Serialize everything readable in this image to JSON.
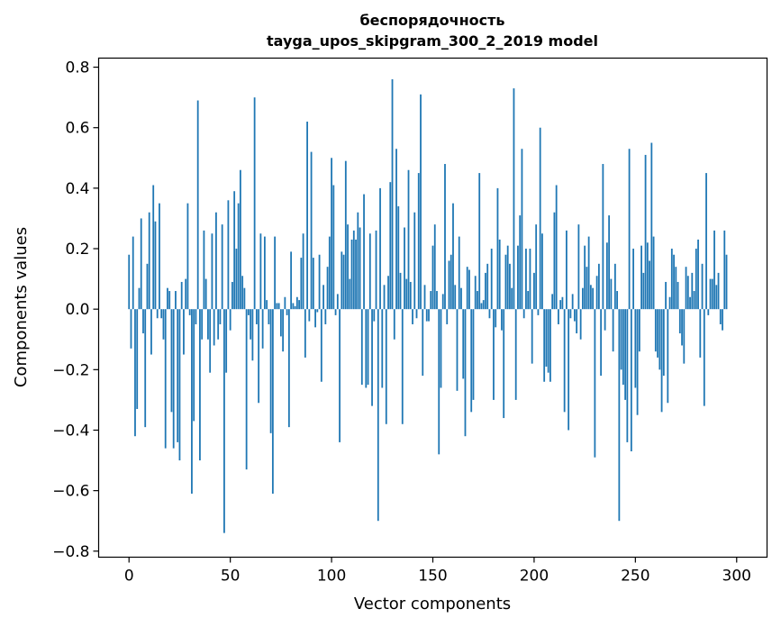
{
  "chart_data": {
    "type": "bar",
    "title": "беспорядочность",
    "subtitle": "tayga_upos_skipgram_300_2_2019 model",
    "xlabel": "Vector components",
    "ylabel": "Components values",
    "xlim": [
      -15,
      315
    ],
    "ylim": [
      -0.82,
      0.83
    ],
    "xticks": [
      0,
      50,
      100,
      150,
      200,
      250,
      300
    ],
    "yticks": [
      -0.8,
      -0.6,
      -0.4,
      -0.2,
      0.0,
      0.2,
      0.4,
      0.6,
      0.8
    ],
    "ytick_labels": [
      "−0.8",
      "−0.6",
      "−0.4",
      "−0.2",
      "0.0",
      "0.2",
      "0.4",
      "0.6",
      "0.8"
    ],
    "bar_color": "#1f77b4",
    "grid": false,
    "values": [
      0.18,
      -0.13,
      0.24,
      -0.42,
      -0.33,
      0.07,
      0.3,
      -0.08,
      -0.39,
      0.15,
      0.32,
      -0.15,
      0.41,
      0.29,
      -0.03,
      0.35,
      -0.03,
      -0.1,
      -0.46,
      0.07,
      0.06,
      -0.34,
      -0.46,
      0.06,
      -0.44,
      -0.5,
      0.09,
      -0.15,
      0.1,
      0.35,
      -0.02,
      -0.61,
      -0.37,
      -0.05,
      0.69,
      -0.5,
      -0.1,
      0.26,
      0.1,
      -0.1,
      -0.21,
      0.25,
      -0.12,
      0.32,
      -0.1,
      -0.05,
      0.28,
      -0.74,
      -0.21,
      0.36,
      -0.07,
      0.09,
      0.39,
      0.2,
      0.35,
      0.46,
      0.11,
      0.07,
      -0.53,
      -0.02,
      -0.1,
      -0.17,
      0.7,
      -0.05,
      -0.31,
      0.25,
      -0.13,
      0.24,
      0.03,
      -0.05,
      -0.41,
      -0.61,
      0.24,
      0.02,
      0.02,
      -0.09,
      -0.14,
      0.04,
      -0.02,
      -0.39,
      0.19,
      0.02,
      0.01,
      0.04,
      0.03,
      0.17,
      0.25,
      -0.16,
      0.62,
      -0.04,
      0.52,
      0.17,
      -0.06,
      -0.01,
      0.18,
      -0.24,
      0.08,
      -0.05,
      0.14,
      0.24,
      0.5,
      0.41,
      -0.02,
      0.05,
      -0.44,
      0.19,
      0.18,
      0.49,
      0.28,
      0.1,
      0.23,
      0.26,
      0.23,
      0.32,
      0.27,
      -0.25,
      0.38,
      -0.26,
      -0.25,
      0.25,
      -0.32,
      -0.04,
      0.26,
      -0.7,
      0.4,
      -0.26,
      0.08,
      -0.38,
      0.11,
      0.42,
      0.76,
      -0.1,
      0.53,
      0.34,
      0.12,
      -0.38,
      0.27,
      0.1,
      0.46,
      0.09,
      -0.05,
      0.32,
      -0.03,
      0.45,
      0.71,
      -0.22,
      0.08,
      -0.04,
      -0.04,
      0.06,
      0.21,
      0.28,
      0.06,
      -0.48,
      -0.26,
      0.05,
      0.48,
      -0.05,
      0.16,
      0.18,
      0.35,
      0.08,
      -0.27,
      0.24,
      0.07,
      -0.23,
      -0.42,
      0.14,
      0.13,
      -0.34,
      -0.3,
      0.11,
      0.06,
      0.45,
      0.02,
      0.03,
      0.12,
      0.15,
      -0.03,
      0.2,
      -0.3,
      -0.06,
      0.4,
      0.23,
      -0.07,
      -0.36,
      0.18,
      0.21,
      0.15,
      0.07,
      0.73,
      -0.3,
      0.21,
      0.31,
      0.53,
      -0.03,
      0.2,
      0.06,
      0.2,
      -0.18,
      0.12,
      0.28,
      -0.02,
      0.6,
      0.25,
      -0.24,
      -0.19,
      -0.21,
      -0.24,
      0.05,
      0.32,
      0.41,
      -0.05,
      0.03,
      0.04,
      -0.34,
      0.26,
      -0.4,
      -0.03,
      0.05,
      -0.04,
      -0.08,
      0.28,
      -0.1,
      0.07,
      0.21,
      0.14,
      0.24,
      0.08,
      0.07,
      -0.49,
      0.11,
      0.15,
      -0.22,
      0.48,
      -0.07,
      0.22,
      0.31,
      0.1,
      -0.14,
      0.15,
      0.06,
      -0.7,
      -0.2,
      -0.25,
      -0.3,
      -0.44,
      0.53,
      -0.47,
      0.2,
      -0.26,
      -0.35,
      -0.14,
      0.21,
      0.12,
      0.51,
      0.22,
      0.16,
      0.55,
      0.24,
      -0.14,
      -0.16,
      -0.2,
      -0.34,
      -0.22,
      0.09,
      -0.31,
      0.04,
      0.2,
      0.18,
      0.14,
      0.09,
      -0.08,
      -0.12,
      -0.18,
      0.14,
      0.11,
      0.04,
      0.12,
      0.06,
      0.2,
      0.23,
      -0.16,
      0.15,
      -0.32,
      0.45,
      -0.02,
      0.1,
      0.1,
      0.26,
      0.08,
      0.12,
      -0.05,
      -0.07,
      0.26,
      0.18
    ]
  }
}
